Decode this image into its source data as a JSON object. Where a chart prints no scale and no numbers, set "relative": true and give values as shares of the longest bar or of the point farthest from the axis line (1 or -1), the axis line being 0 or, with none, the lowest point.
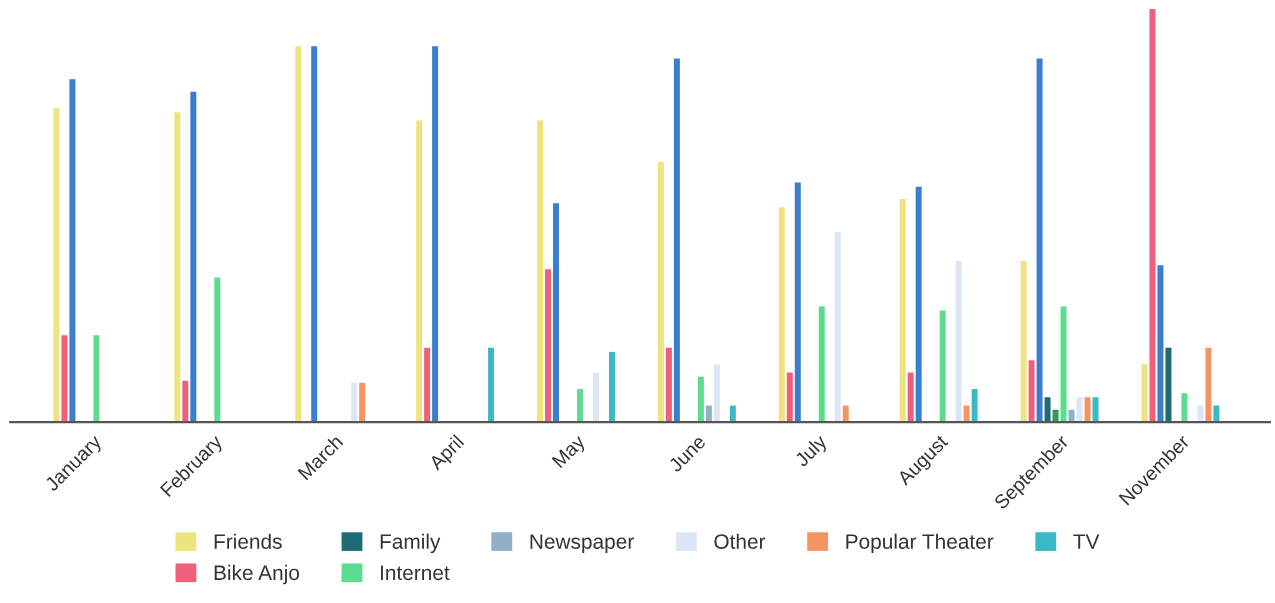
{
  "chart_data": {
    "type": "bar",
    "relative": true,
    "legend": "bottom",
    "grid": false,
    "categories": [
      "January",
      "February",
      "March",
      "April",
      "May",
      "June",
      "July",
      "August",
      "September",
      "November"
    ],
    "series": [
      {
        "name": "Friends",
        "color": "#eee47f",
        "values": [
          0.76,
          0.75,
          0.91,
          0.73,
          0.73,
          0.63,
          0.52,
          0.54,
          0.39,
          0.14
        ]
      },
      {
        "name": "Bike Anjo",
        "color": "#f0607a",
        "values": [
          0.21,
          0.1,
          null,
          0.18,
          0.37,
          0.18,
          0.12,
          0.12,
          0.15,
          1
        ]
      },
      {
        "color": "#3a7fcc",
        "values": [
          0.83,
          0.8,
          0.91,
          0.91,
          0.53,
          0.88,
          0.58,
          0.57,
          0.88,
          0.38
        ]
      },
      {
        "name": "Family",
        "color": "#1f6b75",
        "values": [
          null,
          null,
          null,
          null,
          null,
          null,
          null,
          null,
          0.06,
          0.18
        ]
      },
      {
        "color": "#2e9e4e",
        "values": [
          null,
          null,
          null,
          null,
          null,
          null,
          null,
          null,
          0.03,
          null
        ]
      },
      {
        "name": "Internet",
        "color": "#5ddc8f",
        "values": [
          0.21,
          0.35,
          null,
          null,
          0.08,
          0.11,
          0.28,
          0.27,
          0.28,
          0.07
        ]
      },
      {
        "name": "Newspaper",
        "color": "#8fb0c8",
        "values": [
          null,
          null,
          null,
          null,
          null,
          0.04,
          null,
          null,
          0.03,
          null
        ]
      },
      {
        "name": "Other",
        "color": "#dce6f4",
        "values": [
          null,
          null,
          0.095,
          null,
          0.12,
          0.14,
          0.46,
          0.39,
          0.06,
          0.04
        ]
      },
      {
        "name": "Popular Theater",
        "color": "#f59462",
        "values": [
          null,
          null,
          0.095,
          null,
          null,
          null,
          0.04,
          0.04,
          0.06,
          0.18
        ]
      },
      {
        "name": "TV",
        "color": "#3bb8c8",
        "values": [
          null,
          null,
          null,
          0.18,
          0.17,
          0.04,
          null,
          0.08,
          0.06,
          0.04
        ]
      }
    ]
  }
}
